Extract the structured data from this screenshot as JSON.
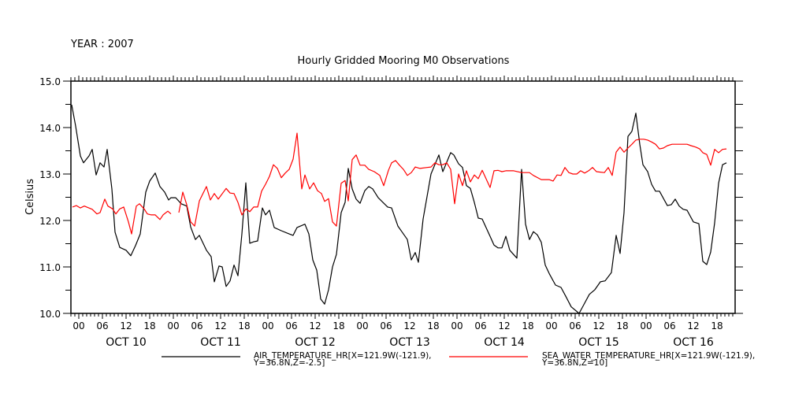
{
  "header": {
    "year_label": "YEAR : 2007"
  },
  "chart_data": {
    "type": "line",
    "title": "Hourly Gridded Mooring M0 Observations",
    "xlabel": "",
    "ylabel": "Celsius",
    "x_units": "hours since OCT 10 00:00 (2007)",
    "xlim": [
      -2,
      166.6
    ],
    "ylim": [
      10.0,
      15.0
    ],
    "y_ticks": [
      "10.0",
      "11.0",
      "12.0",
      "13.0",
      "14.0",
      "15.0"
    ],
    "x_hour_ticks": [
      "00",
      "06",
      "12",
      "18",
      "00",
      "06",
      "12",
      "18",
      "00",
      "06",
      "12",
      "18",
      "00",
      "06",
      "12",
      "18",
      "00",
      "06",
      "12",
      "18",
      "00",
      "06",
      "12",
      "18",
      "00",
      "06",
      "12",
      "18"
    ],
    "day_labels": [
      "OCT 10",
      "OCT 11",
      "OCT 12",
      "OCT 13",
      "OCT 14",
      "OCT 15",
      "OCT 16"
    ],
    "grid": false,
    "legend_placement": "bottom",
    "series": [
      {
        "name": "AIR_TEMPERATURE_HR[X=121.9W(-121.9),",
        "name_line2": "Y=36.8N,Z=-2.5]",
        "color": "#000000",
        "points": [
          [
            -1.8,
            14.49
          ],
          [
            -0.8,
            14.03
          ],
          [
            0.4,
            13.39
          ],
          [
            1.2,
            13.24
          ],
          [
            2.6,
            13.39
          ],
          [
            3.4,
            13.53
          ],
          [
            4.4,
            12.98
          ],
          [
            5.4,
            13.24
          ],
          [
            6.4,
            13.15
          ],
          [
            7.2,
            13.53
          ],
          [
            8.4,
            12.68
          ],
          [
            9.2,
            11.75
          ],
          [
            10.4,
            11.42
          ],
          [
            12,
            11.36
          ],
          [
            13.2,
            11.24
          ],
          [
            14.4,
            11.46
          ],
          [
            15.6,
            11.71
          ],
          [
            17,
            12.61
          ],
          [
            18,
            12.85
          ],
          [
            19.4,
            13.02
          ],
          [
            20.6,
            12.73
          ],
          [
            21.8,
            12.61
          ],
          [
            22.8,
            12.44
          ],
          [
            23.4,
            12.49
          ],
          [
            24.6,
            12.49
          ],
          [
            26,
            12.36
          ],
          [
            27.4,
            12.31
          ],
          [
            28.4,
            11.86
          ],
          [
            29.6,
            11.59
          ],
          [
            30.6,
            11.68
          ],
          [
            32.4,
            11.36
          ],
          [
            33.6,
            11.22
          ],
          [
            34.4,
            10.68
          ],
          [
            35.6,
            11.02
          ],
          [
            36.4,
            11.0
          ],
          [
            37.4,
            10.58
          ],
          [
            38.4,
            10.7
          ],
          [
            39.4,
            11.04
          ],
          [
            40.4,
            10.81
          ],
          [
            41.4,
            11.71
          ],
          [
            42.4,
            12.81
          ],
          [
            43.4,
            11.51
          ],
          [
            44.4,
            11.54
          ],
          [
            45.4,
            11.56
          ],
          [
            46.6,
            12.27
          ],
          [
            47.4,
            12.12
          ],
          [
            48.4,
            12.22
          ],
          [
            49.6,
            11.85
          ],
          [
            51.4,
            11.78
          ],
          [
            53.4,
            11.71
          ],
          [
            54.4,
            11.68
          ],
          [
            55.4,
            11.85
          ],
          [
            57.4,
            11.92
          ],
          [
            58.4,
            11.71
          ],
          [
            59.4,
            11.15
          ],
          [
            60.4,
            10.93
          ],
          [
            61.4,
            10.31
          ],
          [
            62.4,
            10.2
          ],
          [
            63.4,
            10.51
          ],
          [
            64.4,
            11.0
          ],
          [
            65.4,
            11.27
          ],
          [
            66.6,
            12.17
          ],
          [
            67.6,
            12.39
          ],
          [
            68.4,
            13.12
          ],
          [
            69.4,
            12.68
          ],
          [
            70.4,
            12.46
          ],
          [
            71.4,
            12.37
          ],
          [
            72.6,
            12.64
          ],
          [
            73.6,
            12.73
          ],
          [
            74.6,
            12.68
          ],
          [
            76,
            12.49
          ],
          [
            78.4,
            12.29
          ],
          [
            79.4,
            12.27
          ],
          [
            81,
            11.88
          ],
          [
            83.4,
            11.59
          ],
          [
            84.4,
            11.15
          ],
          [
            85.4,
            11.31
          ],
          [
            86.2,
            11.1
          ],
          [
            87.4,
            12.03
          ],
          [
            89.4,
            13.0
          ],
          [
            91.4,
            13.41
          ],
          [
            92.4,
            13.05
          ],
          [
            94.4,
            13.46
          ],
          [
            95.2,
            13.41
          ],
          [
            96.4,
            13.22
          ],
          [
            97.4,
            13.14
          ],
          [
            98.4,
            12.75
          ],
          [
            99.4,
            12.69
          ],
          [
            100.4,
            12.39
          ],
          [
            101.4,
            12.05
          ],
          [
            102.4,
            12.03
          ],
          [
            104.4,
            11.66
          ],
          [
            105.4,
            11.47
          ],
          [
            106.4,
            11.41
          ],
          [
            107.4,
            11.41
          ],
          [
            108.4,
            11.66
          ],
          [
            109.4,
            11.36
          ],
          [
            111.2,
            11.19
          ],
          [
            112.4,
            13.1
          ],
          [
            113.4,
            11.92
          ],
          [
            114.4,
            11.59
          ],
          [
            115.4,
            11.76
          ],
          [
            116.4,
            11.69
          ],
          [
            117.4,
            11.53
          ],
          [
            118.4,
            11.04
          ],
          [
            119.4,
            10.86
          ],
          [
            121,
            10.61
          ],
          [
            122.4,
            10.56
          ],
          [
            123.6,
            10.37
          ],
          [
            125,
            10.14
          ],
          [
            127,
            10.0
          ],
          [
            128.4,
            10.22
          ],
          [
            129.6,
            10.41
          ],
          [
            131,
            10.51
          ],
          [
            132.4,
            10.68
          ],
          [
            133.6,
            10.7
          ],
          [
            135.2,
            10.88
          ],
          [
            136.4,
            11.68
          ],
          [
            137.4,
            11.29
          ],
          [
            138.4,
            12.17
          ],
          [
            139.4,
            13.81
          ],
          [
            140.4,
            13.92
          ],
          [
            141.4,
            14.31
          ],
          [
            142.4,
            13.64
          ],
          [
            143.2,
            13.2
          ],
          [
            144.4,
            13.05
          ],
          [
            145.4,
            12.78
          ],
          [
            146.4,
            12.63
          ],
          [
            147.4,
            12.63
          ],
          [
            149.4,
            12.32
          ],
          [
            150.4,
            12.34
          ],
          [
            151.4,
            12.46
          ],
          [
            152.4,
            12.31
          ],
          [
            153.4,
            12.24
          ],
          [
            154.4,
            12.22
          ],
          [
            156,
            11.97
          ],
          [
            157.4,
            11.93
          ],
          [
            158.4,
            11.12
          ],
          [
            159.4,
            11.05
          ],
          [
            160.4,
            11.32
          ],
          [
            161.4,
            11.95
          ],
          [
            162.4,
            12.8
          ],
          [
            163.4,
            13.2
          ],
          [
            164.4,
            13.24
          ]
        ]
      },
      {
        "name": "SEA_WATER_TEMPERATURE_HR[X=121.9W(-121.9),",
        "name_line2": "Y=36.8N,Z=10]",
        "color": "#ff0000",
        "points": [
          [
            -1.6,
            12.29
          ],
          [
            -0.6,
            12.32
          ],
          [
            0.4,
            12.27
          ],
          [
            1.4,
            12.31
          ],
          [
            3.4,
            12.24
          ],
          [
            4.6,
            12.14
          ],
          [
            5.4,
            12.17
          ],
          [
            6.6,
            12.46
          ],
          [
            7.4,
            12.31
          ],
          [
            8.6,
            12.25
          ],
          [
            9.4,
            12.14
          ],
          [
            10.4,
            12.25
          ],
          [
            11.4,
            12.29
          ],
          [
            12.6,
            11.97
          ],
          [
            13.4,
            11.71
          ],
          [
            14.6,
            12.31
          ],
          [
            15.4,
            12.36
          ],
          [
            16.6,
            12.25
          ],
          [
            17.4,
            12.14
          ],
          [
            18.4,
            12.12
          ],
          [
            19.4,
            12.12
          ],
          [
            20.6,
            12.02
          ],
          [
            21.4,
            12.12
          ],
          [
            22.6,
            12.2
          ],
          [
            23.4,
            12.14
          ],
          null,
          [
            25.4,
            12.17
          ],
          [
            26.4,
            12.61
          ],
          [
            27.4,
            12.34
          ],
          [
            28.4,
            11.97
          ],
          [
            29.4,
            11.88
          ],
          [
            30.6,
            12.42
          ],
          [
            31.4,
            12.56
          ],
          [
            32.4,
            12.73
          ],
          [
            33.4,
            12.44
          ],
          [
            34.4,
            12.58
          ],
          [
            35.4,
            12.46
          ],
          [
            37.4,
            12.69
          ],
          [
            38.4,
            12.59
          ],
          [
            39.4,
            12.58
          ],
          [
            40.4,
            12.39
          ],
          [
            41.4,
            12.12
          ],
          [
            42.4,
            12.25
          ],
          [
            43.4,
            12.19
          ],
          [
            44.4,
            12.29
          ],
          [
            45.4,
            12.29
          ],
          [
            46.4,
            12.63
          ],
          [
            47.4,
            12.78
          ],
          [
            48.4,
            12.95
          ],
          [
            49.4,
            13.2
          ],
          [
            50.4,
            13.12
          ],
          [
            51.4,
            12.92
          ],
          [
            52.4,
            13.02
          ],
          [
            53.4,
            13.1
          ],
          [
            54.4,
            13.32
          ],
          [
            55.4,
            13.88
          ],
          [
            56.6,
            12.68
          ],
          [
            57.4,
            12.98
          ],
          [
            58.6,
            12.68
          ],
          [
            59.6,
            12.81
          ],
          [
            60.6,
            12.64
          ],
          [
            61.6,
            12.58
          ],
          [
            62.4,
            12.41
          ],
          [
            63.4,
            12.47
          ],
          [
            64.4,
            11.97
          ],
          [
            65.4,
            11.88
          ],
          [
            66.6,
            12.8
          ],
          [
            67.6,
            12.86
          ],
          [
            68.4,
            12.42
          ],
          [
            69.4,
            13.31
          ],
          [
            70.4,
            13.41
          ],
          [
            71.4,
            13.19
          ],
          [
            72.6,
            13.19
          ],
          [
            73.6,
            13.1
          ],
          [
            75,
            13.05
          ],
          [
            76.4,
            12.97
          ],
          [
            77.4,
            12.75
          ],
          [
            78.6,
            13.08
          ],
          [
            79.4,
            13.24
          ],
          [
            80.4,
            13.29
          ],
          [
            81.4,
            13.19
          ],
          [
            82.4,
            13.1
          ],
          [
            83.4,
            12.97
          ],
          [
            84.4,
            13.03
          ],
          [
            85.4,
            13.15
          ],
          [
            86.6,
            13.12
          ],
          [
            88.4,
            13.14
          ],
          [
            89.4,
            13.15
          ],
          [
            90.4,
            13.24
          ],
          [
            91.4,
            13.2
          ],
          [
            92.4,
            13.2
          ],
          [
            93.4,
            13.24
          ],
          [
            94.4,
            13.1
          ],
          [
            95.4,
            12.36
          ],
          [
            96.4,
            13.0
          ],
          [
            97.4,
            12.75
          ],
          [
            98.4,
            13.07
          ],
          [
            99.4,
            12.83
          ],
          [
            100.4,
            12.98
          ],
          [
            101.4,
            12.9
          ],
          [
            102.4,
            13.08
          ],
          [
            104.4,
            12.71
          ],
          [
            105.4,
            13.07
          ],
          [
            106.4,
            13.08
          ],
          [
            107.4,
            13.05
          ],
          [
            108.4,
            13.07
          ],
          [
            110.4,
            13.07
          ],
          [
            112.4,
            13.03
          ],
          [
            114.4,
            13.03
          ],
          [
            115.4,
            12.97
          ],
          [
            117.4,
            12.88
          ],
          [
            119.4,
            12.88
          ],
          [
            120.4,
            12.85
          ],
          [
            121.4,
            12.98
          ],
          [
            122.4,
            12.97
          ],
          [
            123.4,
            13.14
          ],
          [
            124.4,
            13.03
          ],
          [
            125.4,
            13.0
          ],
          [
            126.4,
            13.0
          ],
          [
            127.4,
            13.07
          ],
          [
            128.4,
            13.02
          ],
          [
            129.4,
            13.07
          ],
          [
            130.4,
            13.14
          ],
          [
            131.4,
            13.05
          ],
          [
            133.4,
            13.03
          ],
          [
            134.4,
            13.14
          ],
          [
            135.4,
            12.97
          ],
          [
            136.4,
            13.47
          ],
          [
            137.4,
            13.58
          ],
          [
            138.4,
            13.47
          ],
          [
            139.4,
            13.56
          ],
          [
            140.4,
            13.64
          ],
          [
            141.4,
            13.73
          ],
          [
            142.4,
            13.75
          ],
          [
            143.4,
            13.75
          ],
          [
            144.4,
            13.73
          ],
          [
            145.4,
            13.69
          ],
          [
            146.4,
            13.64
          ],
          [
            147.4,
            13.54
          ],
          [
            148.4,
            13.56
          ],
          [
            149.4,
            13.61
          ],
          [
            150.6,
            13.64
          ],
          [
            152.6,
            13.64
          ],
          [
            154.4,
            13.64
          ],
          [
            155.4,
            13.61
          ],
          [
            156.6,
            13.58
          ],
          [
            157.6,
            13.54
          ],
          [
            158.4,
            13.46
          ],
          [
            159.4,
            13.42
          ],
          [
            160.4,
            13.19
          ],
          [
            161.4,
            13.53
          ],
          [
            162.4,
            13.46
          ],
          [
            163.4,
            13.53
          ],
          [
            164.4,
            13.54
          ]
        ]
      }
    ]
  }
}
